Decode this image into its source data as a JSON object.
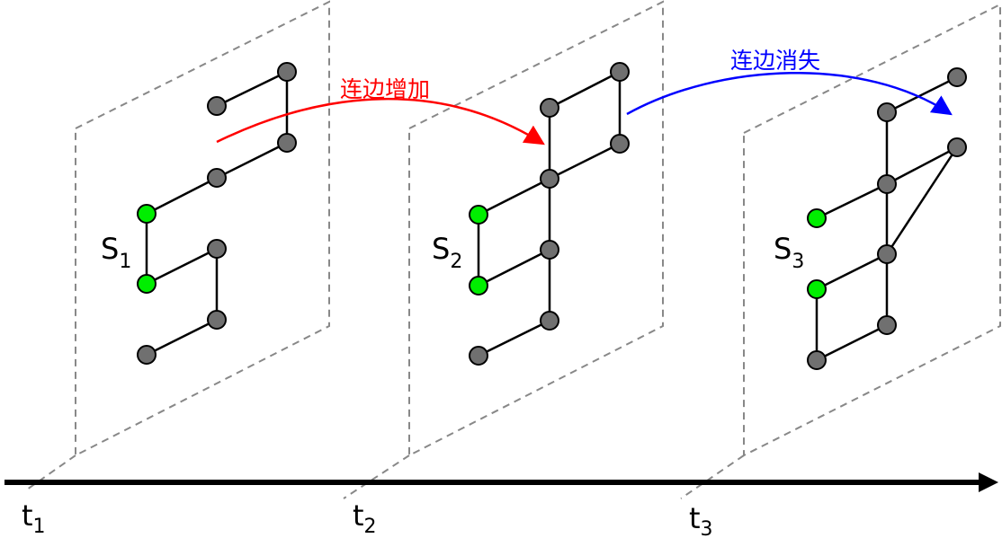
{
  "arrows": {
    "add_label": "连边增加",
    "remove_label": "连边消失"
  },
  "snapshots": [
    {
      "label": "S",
      "sub": "1"
    },
    {
      "label": "S",
      "sub": "2"
    },
    {
      "label": "S",
      "sub": "3"
    }
  ],
  "timeline": {
    "ticks": [
      {
        "label": "t",
        "sub": "1"
      },
      {
        "label": "t",
        "sub": "2"
      },
      {
        "label": "t",
        "sub": "3"
      }
    ]
  },
  "colors": {
    "add_arrow": "#ff0000",
    "remove_arrow": "#0000ff",
    "node_gray": "#707070",
    "node_green": "#00ee00",
    "plane_dash": "#888888",
    "axis": "#000000"
  }
}
